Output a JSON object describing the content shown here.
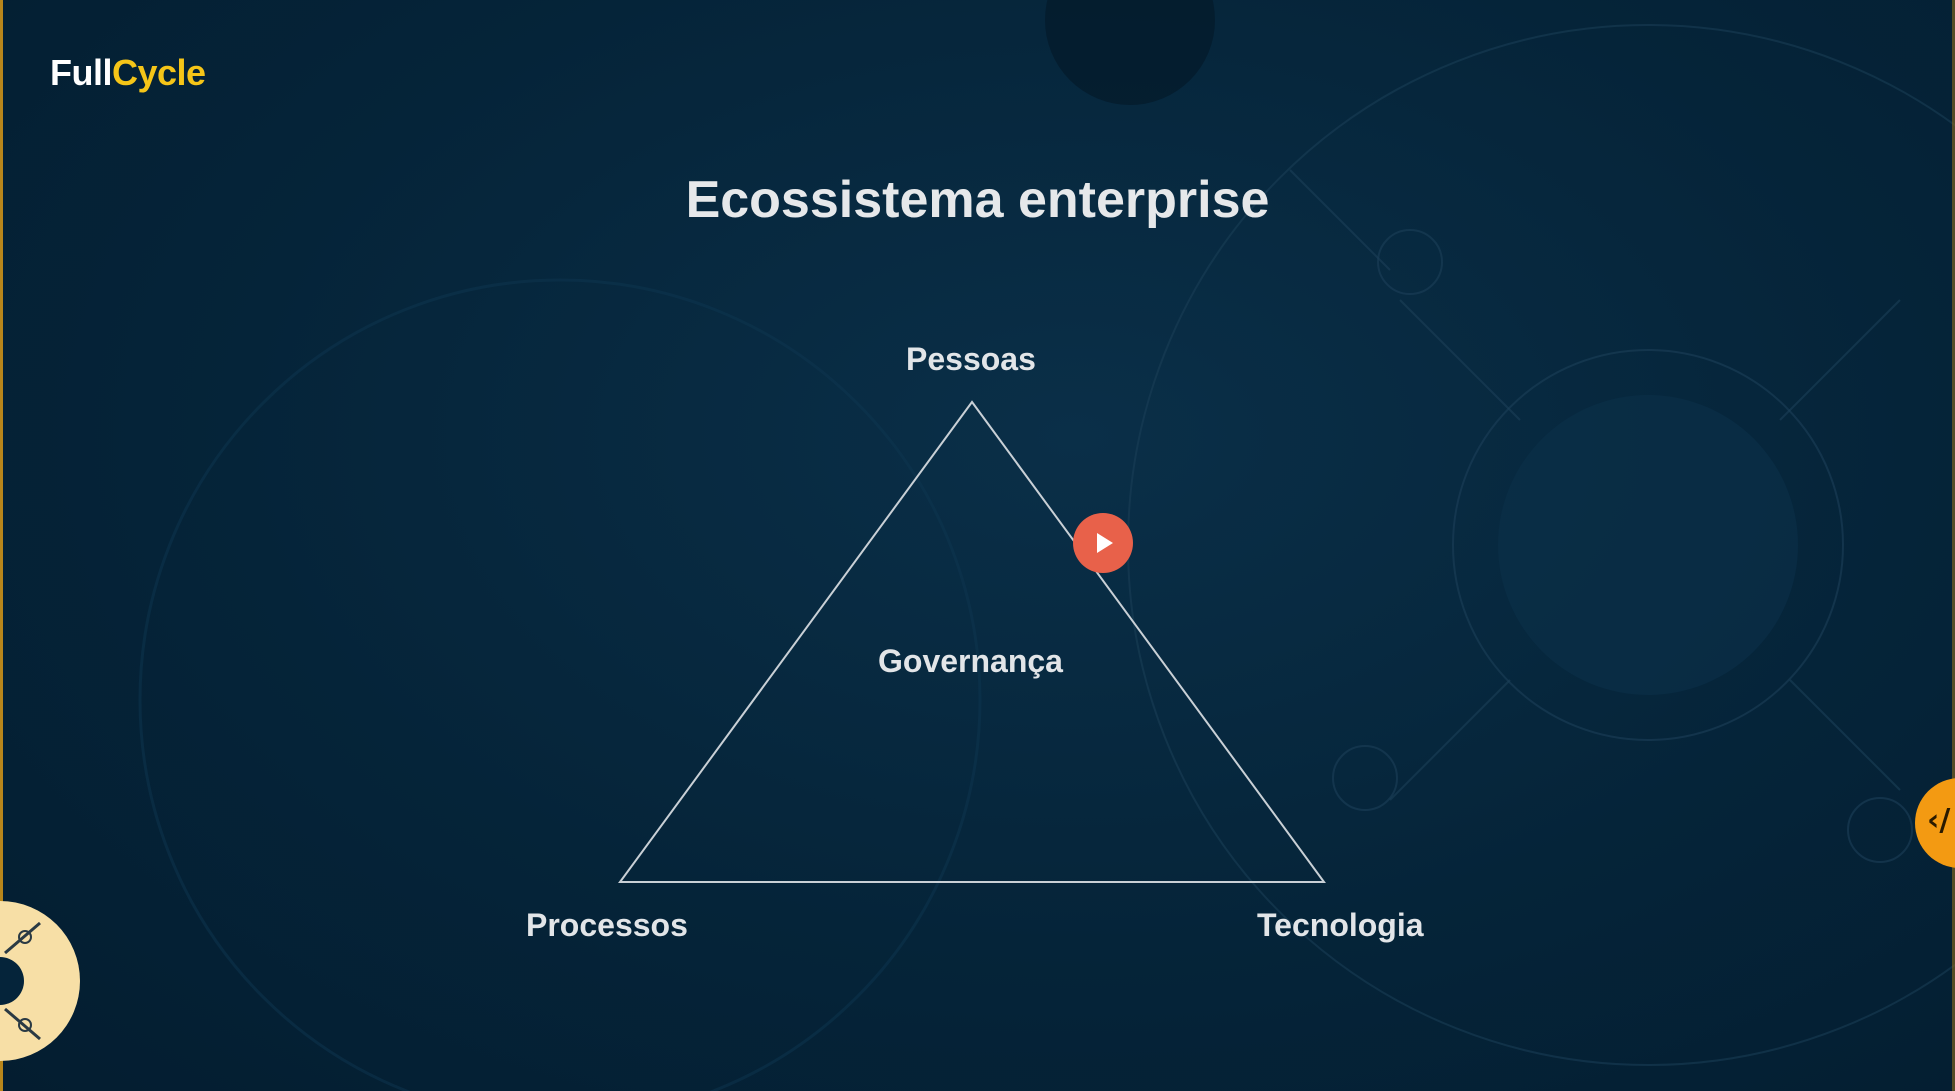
{
  "logo": {
    "part1": "Full",
    "part2": "Cycle"
  },
  "slide": {
    "title": "Ecossistema enterprise",
    "vertices": {
      "top": "Pessoas",
      "center": "Governança",
      "left": "Processos",
      "right": "Tecnologia"
    }
  },
  "controls": {
    "play_icon": "play-icon",
    "side_tab_icon": "code-chevron-icon",
    "side_tab_glyph": "‹/"
  },
  "colors": {
    "background": "#05243a",
    "title": "#e6e8ea",
    "logo_accent": "#f5c518",
    "play_button": "#e8614a",
    "side_tab": "#f39a12",
    "triangle_stroke": "#c9d0d6"
  }
}
